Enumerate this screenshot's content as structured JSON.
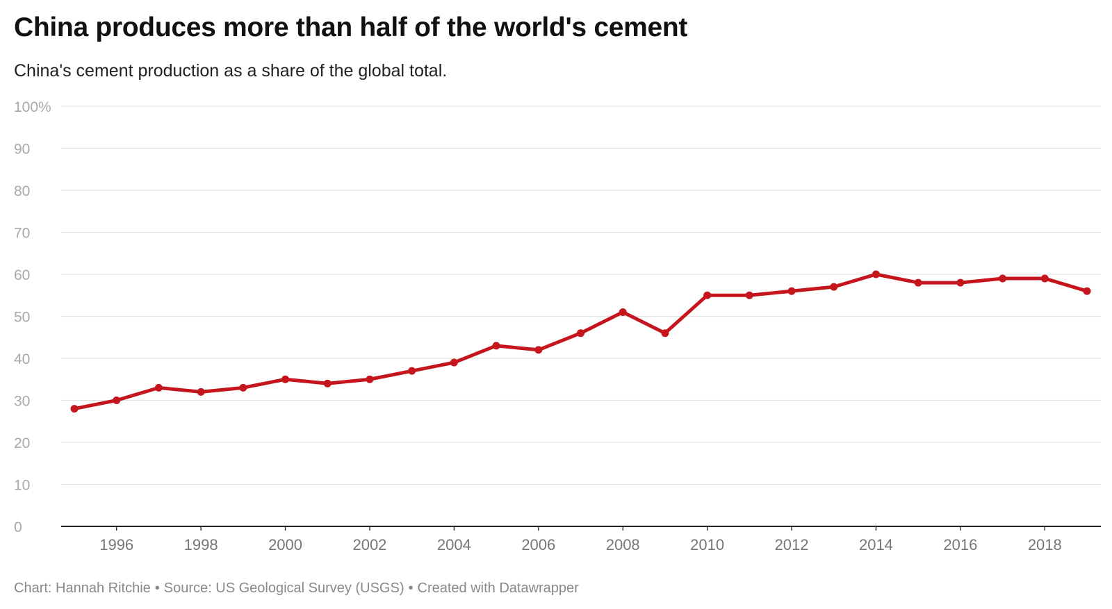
{
  "chart_data": {
    "type": "line",
    "title": "China produces more than half of the world's cement",
    "subtitle": "China's cement production as a share of the global total.",
    "xlabel": "",
    "ylabel": "",
    "ylim": [
      0,
      100
    ],
    "xlim": [
      1995,
      2019
    ],
    "y_ticks": [
      0,
      10,
      20,
      30,
      40,
      50,
      60,
      70,
      80,
      90,
      100
    ],
    "y_tick_labels": [
      "0",
      "10",
      "20",
      "30",
      "40",
      "50",
      "60",
      "70",
      "80",
      "90",
      "100%"
    ],
    "x_ticks": [
      1996,
      1998,
      2000,
      2002,
      2004,
      2006,
      2008,
      2010,
      2012,
      2014,
      2016,
      2018
    ],
    "x_tick_labels": [
      "1996",
      "1998",
      "2000",
      "2002",
      "2004",
      "2006",
      "2008",
      "2010",
      "2012",
      "2014",
      "2016",
      "2018"
    ],
    "grid": true,
    "legend": "none",
    "series": [
      {
        "color": "#c4161c",
        "x": [
          1995,
          1996,
          1997,
          1998,
          1999,
          2000,
          2001,
          2002,
          2003,
          2004,
          2005,
          2006,
          2007,
          2008,
          2009,
          2010,
          2011,
          2012,
          2013,
          2014,
          2015,
          2016,
          2017,
          2018,
          2019
        ],
        "values": [
          28,
          30,
          33,
          32,
          33,
          35,
          34,
          35,
          37,
          39,
          43,
          42,
          46,
          51,
          46,
          55,
          55,
          56,
          57,
          60,
          58,
          58,
          59,
          59,
          56
        ]
      }
    ],
    "footer": {
      "chart_credit": "Chart: Hannah Ritchie",
      "source": "Source: US Geological Survey (USGS)",
      "tool": "Created with Datawrapper",
      "separator": "•"
    }
  }
}
